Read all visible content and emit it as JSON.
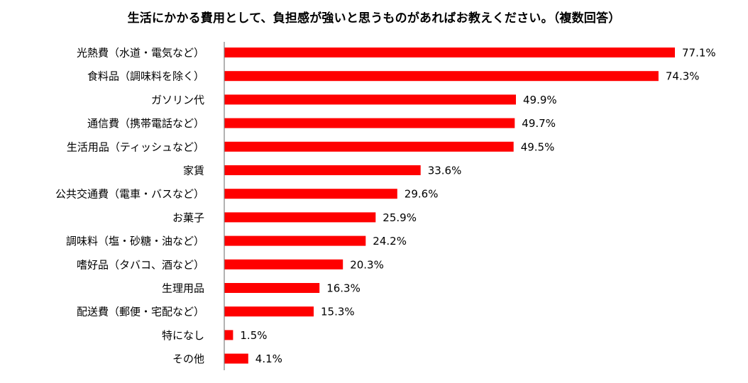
{
  "chart_data": {
    "type": "bar",
    "orientation": "horizontal",
    "title": "生活にかかる費用として、負担感が強いと思うものがあればお教えください。（複数回答）",
    "categories": [
      "光熱費（水道・電気など）",
      "食料品（調味料を除く）",
      "ガソリン代",
      "通信費（携帯電話など）",
      "生活用品（ティッシュなど）",
      "家賃",
      "公共交通費（電車・バスなど）",
      "お菓子",
      "調味料（塩・砂糖・油など）",
      "嗜好品（タバコ、酒など）",
      "生理用品",
      "配送費（郵便・宅配など）",
      "特になし",
      "その他"
    ],
    "values": [
      77.1,
      74.3,
      49.9,
      49.7,
      49.5,
      33.6,
      29.6,
      25.9,
      24.2,
      20.3,
      16.3,
      15.3,
      1.5,
      4.1
    ],
    "value_suffix": "%",
    "bar_color": "#ff0000",
    "axis_color": "#7f7f7f",
    "xlim": [
      0,
      80
    ],
    "grid": false,
    "legend": "none"
  }
}
